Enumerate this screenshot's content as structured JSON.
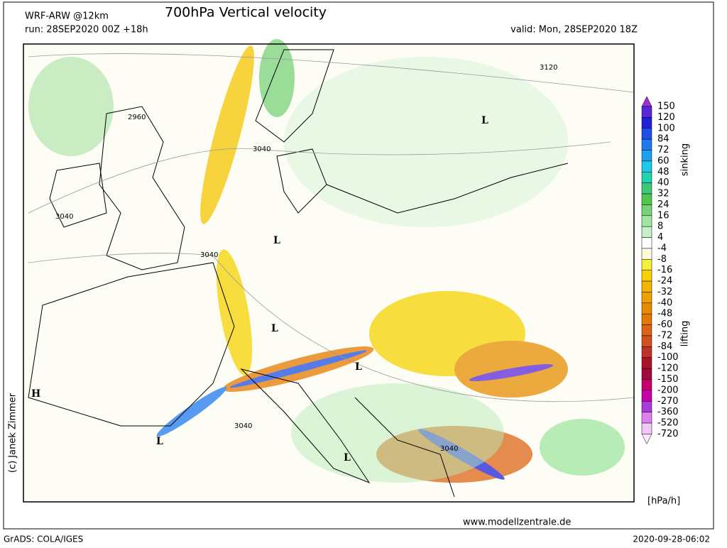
{
  "header": {
    "model": "WRF-ARW @12km",
    "title": "700hPa Vertical velocity",
    "run": "run: 28SEP2020 00Z +18h",
    "valid": "valid: Mon, 28SEP2020 18Z"
  },
  "map": {
    "contour_labels": [
      "3120",
      "2960",
      "3040",
      "3040",
      "3040",
      "3040",
      "3040"
    ],
    "pressure_centers": [
      "L",
      "L",
      "L",
      "L",
      "L",
      "L",
      "H"
    ]
  },
  "legend": {
    "labels": [
      150,
      120,
      100,
      84,
      72,
      60,
      48,
      40,
      32,
      24,
      16,
      8,
      4,
      -4,
      -8,
      -16,
      -24,
      -32,
      -40,
      -48,
      -60,
      -72,
      -84,
      -100,
      -120,
      -150,
      -200,
      -270,
      -360,
      -520,
      -720
    ],
    "top_color": "#9b30d8",
    "colors": [
      "#5a28d8",
      "#2020d8",
      "#1e50e6",
      "#1e78f0",
      "#1ea0f0",
      "#1ec8e6",
      "#20d2b4",
      "#3cc878",
      "#50c850",
      "#78d278",
      "#a0e6a0",
      "#c8f0c8",
      "#ffffff",
      "#fffadc",
      "#f5f03c",
      "#f5d200",
      "#f5b400",
      "#f0a000",
      "#e68c00",
      "#e67800",
      "#dc6414",
      "#d2501e",
      "#be3228",
      "#aa1428",
      "#a00a3c",
      "#c8006e",
      "#c800aa",
      "#aa3cdc",
      "#dc82f0",
      "#f0c8fa"
    ],
    "bottom_color": "#ffe6ff",
    "upper_label": "sinking",
    "lower_label": "lifting",
    "unit": "[hPa/h]"
  },
  "footer": {
    "credit": "(c) Janek Zimmer",
    "website": "www.modellzentrale.de",
    "software": "GrADS: COLA/IGES",
    "timestamp": "2020-09-28-06:02"
  }
}
